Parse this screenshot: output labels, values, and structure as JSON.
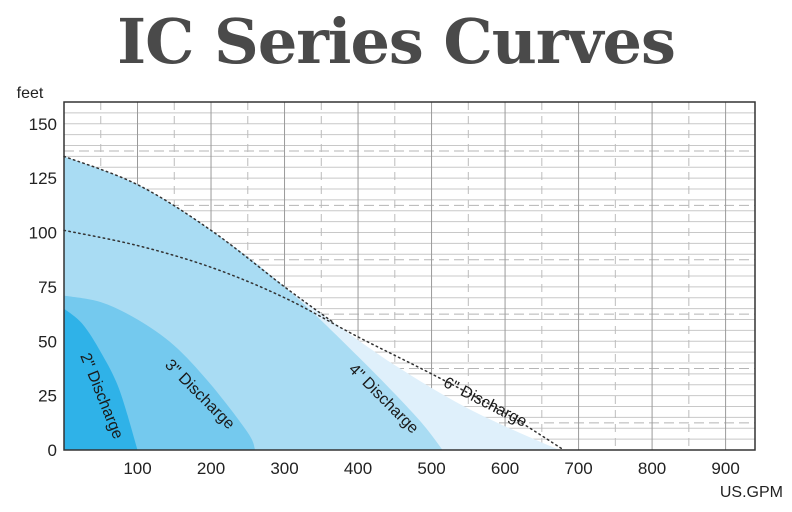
{
  "chart_data": {
    "type": "area",
    "title": "IC Series Curves",
    "xlabel": "US.GPM",
    "ylabel": "feet",
    "xlim": [
      0,
      940
    ],
    "ylim": [
      0,
      160
    ],
    "x_ticks": [
      "100",
      "200",
      "300",
      "400",
      "500",
      "600",
      "700",
      "800",
      "900"
    ],
    "y_ticks": [
      "0",
      "25",
      "50",
      "75",
      "100",
      "125",
      "150"
    ],
    "grid": true,
    "series": [
      {
        "name": "6\" Discharge",
        "color": "#dff0fb",
        "x": [
          0,
          100,
          200,
          300,
          365,
          450,
          550,
          660,
          680
        ],
        "y": [
          135,
          122,
          101,
          75,
          59,
          39,
          19,
          2,
          0
        ]
      },
      {
        "name": "4\" Discharge",
        "color": "#a9dcf3",
        "x": [
          0,
          100,
          200,
          300,
          400,
          480,
          515
        ],
        "y": [
          135,
          122,
          101,
          75,
          43,
          15,
          0
        ]
      },
      {
        "name": "3\" Discharge",
        "color": "#74c9ee",
        "x": [
          0,
          50,
          100,
          150,
          200,
          250,
          260
        ],
        "y": [
          71,
          68,
          60,
          48,
          30,
          8,
          0
        ]
      },
      {
        "name": "2\" Discharge",
        "color": "#2fb2e8",
        "x": [
          0,
          25,
          50,
          75,
          100
        ],
        "y": [
          65,
          58,
          45,
          28,
          0
        ]
      }
    ],
    "dotted_lines": [
      {
        "x": [
          0,
          100,
          200,
          300,
          365
        ],
        "y": [
          135,
          122,
          101,
          75,
          59
        ]
      },
      {
        "x": [
          0,
          100,
          200,
          300,
          400,
          500,
          600,
          680
        ],
        "y": [
          101,
          94,
          84,
          70,
          52,
          35,
          17,
          0
        ]
      }
    ]
  }
}
